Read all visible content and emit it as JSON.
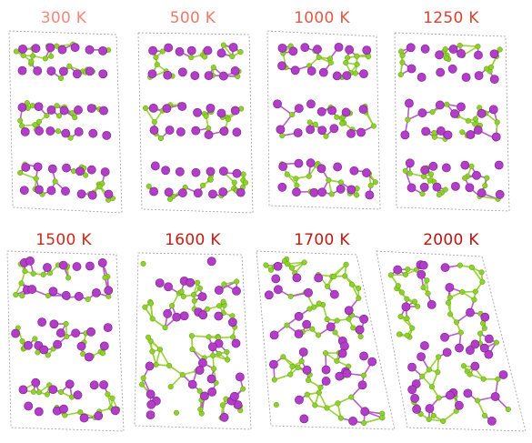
{
  "panels": [
    {
      "label": "300 K",
      "color": "#f08a7c",
      "state": "layered"
    },
    {
      "label": "500 K",
      "color": "#ec7a6a",
      "state": "layered"
    },
    {
      "label": "1000 K",
      "color": "#e05a48",
      "state": "layered"
    },
    {
      "label": "1250 K",
      "color": "#d84232",
      "state": "layered"
    },
    {
      "label": "1500 K",
      "color": "#cc2a1c",
      "state": "layered"
    },
    {
      "label": "1600 K",
      "color": "#c41e12",
      "state": "disordered"
    },
    {
      "label": "1700 K",
      "color": "#c01a10",
      "state": "disordered"
    },
    {
      "label": "2000 K",
      "color": "#bb1410",
      "state": "disordered"
    }
  ],
  "atom_colors": {
    "large_atom": "#b23dc6",
    "small_atom": "#8fd12a",
    "bond_large": "#b85cc8",
    "bond_small": "#9ad23a",
    "cell_border": "#9a9a9a"
  },
  "icons": {
    "large_atom": "purple-sphere",
    "small_atom": "green-sphere"
  }
}
